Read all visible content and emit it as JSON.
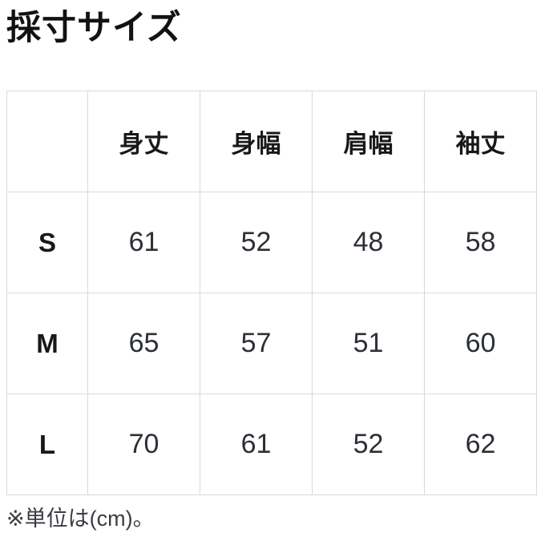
{
  "page": {
    "title": "採寸サイズ",
    "note": "※単位は(cm)。"
  },
  "table": {
    "corner": "",
    "columns": [
      "身丈",
      "身幅",
      "肩幅",
      "袖丈"
    ],
    "rows": [
      {
        "label": "S",
        "values": [
          "61",
          "52",
          "48",
          "58"
        ]
      },
      {
        "label": "M",
        "values": [
          "65",
          "57",
          "51",
          "60"
        ]
      },
      {
        "label": "L",
        "values": [
          "70",
          "61",
          "52",
          "62"
        ]
      }
    ]
  },
  "colors": {
    "border": "#d9d9d9",
    "heading_text": "#121212",
    "value_text": "#2c3036",
    "background": "#ffffff"
  }
}
